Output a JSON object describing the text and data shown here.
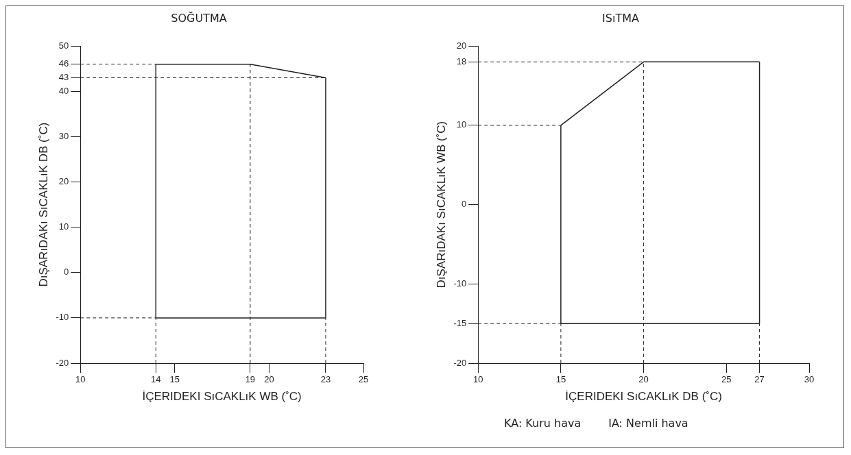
{
  "chart_data": [
    {
      "type": "line",
      "title": "SOĞUTMA",
      "xlabel": "İÇERIDEKI SıCAKLıK WB (˚C)",
      "ylabel": "DıŞARıDAKı SıCAKLıK DB (˚C)",
      "xlim": [
        10,
        25
      ],
      "xticks": [
        10,
        14,
        15,
        19,
        20,
        23,
        25
      ],
      "ylim": [
        -20,
        50
      ],
      "yticks": [
        -20,
        -10,
        0,
        10,
        20,
        30,
        40,
        43,
        46,
        50
      ],
      "grid": false,
      "legend": false,
      "marker": "none",
      "series": [
        {
          "color": "#231f20",
          "line_style": "solid",
          "x": [
            14,
            19,
            23
          ],
          "values": [
            46,
            46,
            43
          ]
        },
        {
          "color": "#231f20",
          "line_style": "solid",
          "x": [
            14,
            23
          ],
          "values": [
            -10,
            -10
          ]
        },
        {
          "color": "#231f20",
          "line_style": "solid",
          "x": [
            14,
            14
          ],
          "values": [
            -10,
            46
          ]
        },
        {
          "color": "#231f20",
          "line_style": "solid",
          "x": [
            23,
            23
          ],
          "values": [
            -10,
            43
          ]
        },
        {
          "color": "#231f20",
          "line_style": "dashed",
          "x": [
            10,
            14
          ],
          "values": [
            46,
            46
          ]
        },
        {
          "color": "#231f20",
          "line_style": "dashed",
          "x": [
            10,
            23
          ],
          "values": [
            43,
            43
          ]
        },
        {
          "color": "#231f20",
          "line_style": "dashed",
          "x": [
            10,
            14
          ],
          "values": [
            -10,
            -10
          ]
        },
        {
          "color": "#231f20",
          "line_style": "dashed",
          "x": [
            14,
            14
          ],
          "values": [
            -20,
            -10
          ]
        },
        {
          "color": "#231f20",
          "line_style": "dashed",
          "x": [
            19,
            19
          ],
          "values": [
            -20,
            46
          ]
        },
        {
          "color": "#231f20",
          "line_style": "dashed",
          "x": [
            23,
            23
          ],
          "values": [
            -20,
            -10
          ]
        }
      ]
    },
    {
      "type": "line",
      "title": "ISıTMA",
      "xlabel": "İÇERIDEKI SıCAKLıK DB (˚C)",
      "ylabel": "DıŞARıDAKı SıCAKLıK WB (˚C)",
      "xlim": [
        10,
        30
      ],
      "xticks": [
        10,
        15,
        20,
        25,
        27,
        30
      ],
      "ylim": [
        -20,
        20
      ],
      "yticks": [
        -20,
        -15,
        -10,
        0,
        10,
        18,
        20
      ],
      "grid": false,
      "legend": false,
      "marker": "none",
      "annotations": [
        "KA: Kuru hava",
        "IA: Nemli hava"
      ],
      "series": [
        {
          "color": "#231f20",
          "line_style": "solid",
          "x": [
            15,
            20,
            27
          ],
          "values": [
            10,
            18,
            18
          ]
        },
        {
          "color": "#231f20",
          "line_style": "solid",
          "x": [
            15,
            27
          ],
          "values": [
            -15,
            -15
          ]
        },
        {
          "color": "#231f20",
          "line_style": "solid",
          "x": [
            15,
            15
          ],
          "values": [
            -15,
            10
          ]
        },
        {
          "color": "#231f20",
          "line_style": "solid",
          "x": [
            27,
            27
          ],
          "values": [
            -15,
            18
          ]
        },
        {
          "color": "#231f20",
          "line_style": "dashed",
          "x": [
            10,
            20
          ],
          "values": [
            18,
            18
          ]
        },
        {
          "color": "#231f20",
          "line_style": "dashed",
          "x": [
            10,
            15
          ],
          "values": [
            10,
            10
          ]
        },
        {
          "color": "#231f20",
          "line_style": "dashed",
          "x": [
            10,
            15
          ],
          "values": [
            -15,
            -15
          ]
        },
        {
          "color": "#231f20",
          "line_style": "dashed",
          "x": [
            15,
            15
          ],
          "values": [
            -20,
            -15
          ]
        },
        {
          "color": "#231f20",
          "line_style": "dashed",
          "x": [
            20,
            20
          ],
          "values": [
            -20,
            18
          ]
        },
        {
          "color": "#231f20",
          "line_style": "dashed",
          "x": [
            27,
            27
          ],
          "values": [
            -20,
            -15
          ]
        }
      ]
    }
  ]
}
